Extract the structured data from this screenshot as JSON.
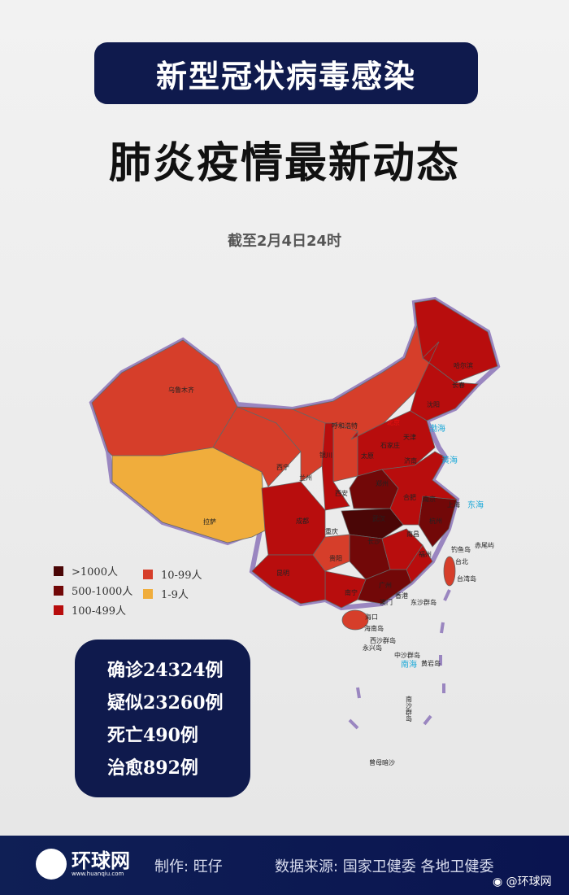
{
  "header": {
    "title": "新型冠状病毒感染",
    "subtitle": "肺炎疫情最新动态",
    "date": "截至2月4日24时"
  },
  "legend": [
    {
      "label": ">1000人",
      "color": "#4a0606"
    },
    {
      "label": "500-1000人",
      "color": "#720808"
    },
    {
      "label": "100-499人",
      "color": "#b80d0d"
    },
    {
      "label": "10-99人",
      "color": "#d63e2a"
    },
    {
      "label": "1-9人",
      "color": "#f0ad3c"
    }
  ],
  "map": {
    "cities": [
      "乌鲁木齐",
      "哈尔滨",
      "长春",
      "沈阳",
      "呼和浩特",
      "北京",
      "天津",
      "石家庄",
      "太原",
      "济南",
      "银川",
      "西宁",
      "兰州",
      "西安",
      "郑州",
      "合肥",
      "南京",
      "上海",
      "杭州",
      "武汉",
      "成都",
      "重庆",
      "长沙",
      "南昌",
      "贵阳",
      "福州",
      "昆明",
      "南宁",
      "广州",
      "香港",
      "澳门",
      "海口",
      "台北",
      "拉萨"
    ],
    "islands": [
      "钓鱼岛",
      "赤尾屿",
      "台湾岛",
      "东沙群岛",
      "海南岛",
      "西沙群岛",
      "永兴岛",
      "中沙群岛",
      "黄岩岛",
      "南沙群岛",
      "曾母暗沙"
    ],
    "seas": [
      "渤海",
      "黄海",
      "东海",
      "南海"
    ]
  },
  "stats": {
    "confirmed": "确诊24324例",
    "suspected": "疑似23260例",
    "deaths": "死亡490例",
    "cured": "治愈892例"
  },
  "footer": {
    "logo": "环球网",
    "logo_url": "www.huanqiu.com",
    "credit": "制作:  旺仔",
    "source": "数据来源:  国家卫健委 各地卫健委",
    "weibo": "@环球网"
  }
}
